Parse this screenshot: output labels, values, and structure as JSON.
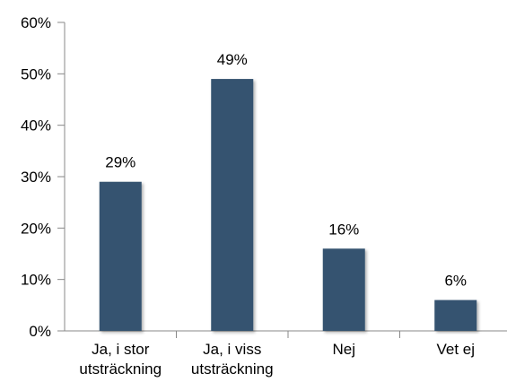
{
  "chart_data": {
    "type": "bar",
    "categories": [
      [
        "Ja, i stor",
        "utsträckning"
      ],
      [
        "Ja, i viss",
        "utsträckning"
      ],
      [
        "Nej"
      ],
      [
        "Vet ej"
      ]
    ],
    "values": [
      29,
      49,
      16,
      6
    ],
    "data_labels": [
      "29%",
      "49%",
      "16%",
      "6%"
    ],
    "ylim": [
      0,
      60
    ],
    "yticks": [
      {
        "value": 0,
        "label": "0%"
      },
      {
        "value": 10,
        "label": "10%"
      },
      {
        "value": 20,
        "label": "20%"
      },
      {
        "value": 30,
        "label": "30%"
      },
      {
        "value": 40,
        "label": "40%"
      },
      {
        "value": 50,
        "label": "50%"
      },
      {
        "value": 60,
        "label": "60%"
      }
    ],
    "grid": false,
    "legend": "none",
    "bar_color": "#34526F",
    "axis_color": "#888888"
  }
}
